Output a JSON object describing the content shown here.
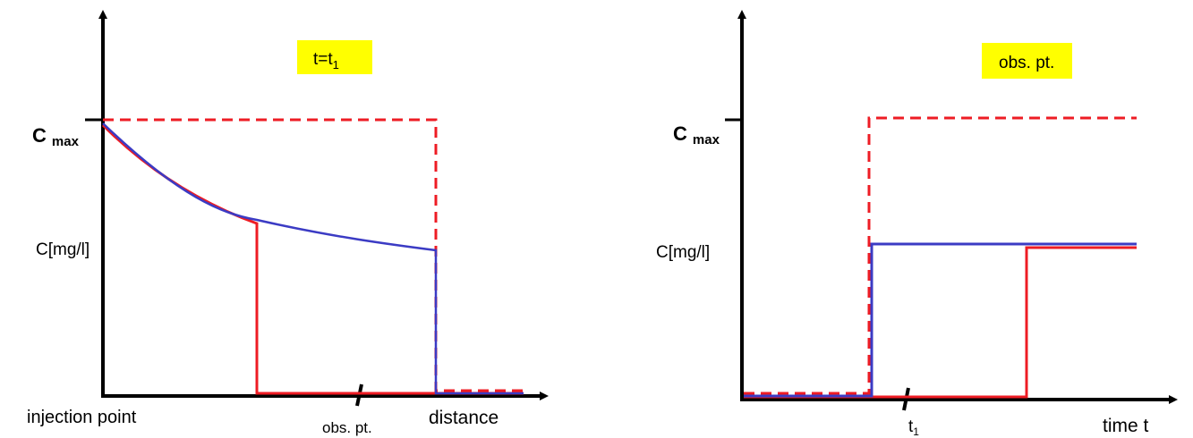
{
  "left_panel": {
    "badge": {
      "text": "t=t",
      "subscript": "1"
    },
    "y_max_label": {
      "text": "C",
      "subscript": "max"
    },
    "y_label": "C[mg/l]",
    "x_label": "distance",
    "origin_label": "injection point",
    "obs_label": "obs. pt."
  },
  "right_panel": {
    "badge": {
      "text": "obs. pt."
    },
    "y_max_label": {
      "text": "C",
      "subscript": "max"
    },
    "y_label": "C[mg/l]",
    "x_label": "time t",
    "t1_label": {
      "text": "t",
      "subscript": "1"
    }
  },
  "colors": {
    "axis": "#000000",
    "red": "#ee1c24",
    "blue": "#3b3bc4",
    "badge": "#ffff00"
  }
}
